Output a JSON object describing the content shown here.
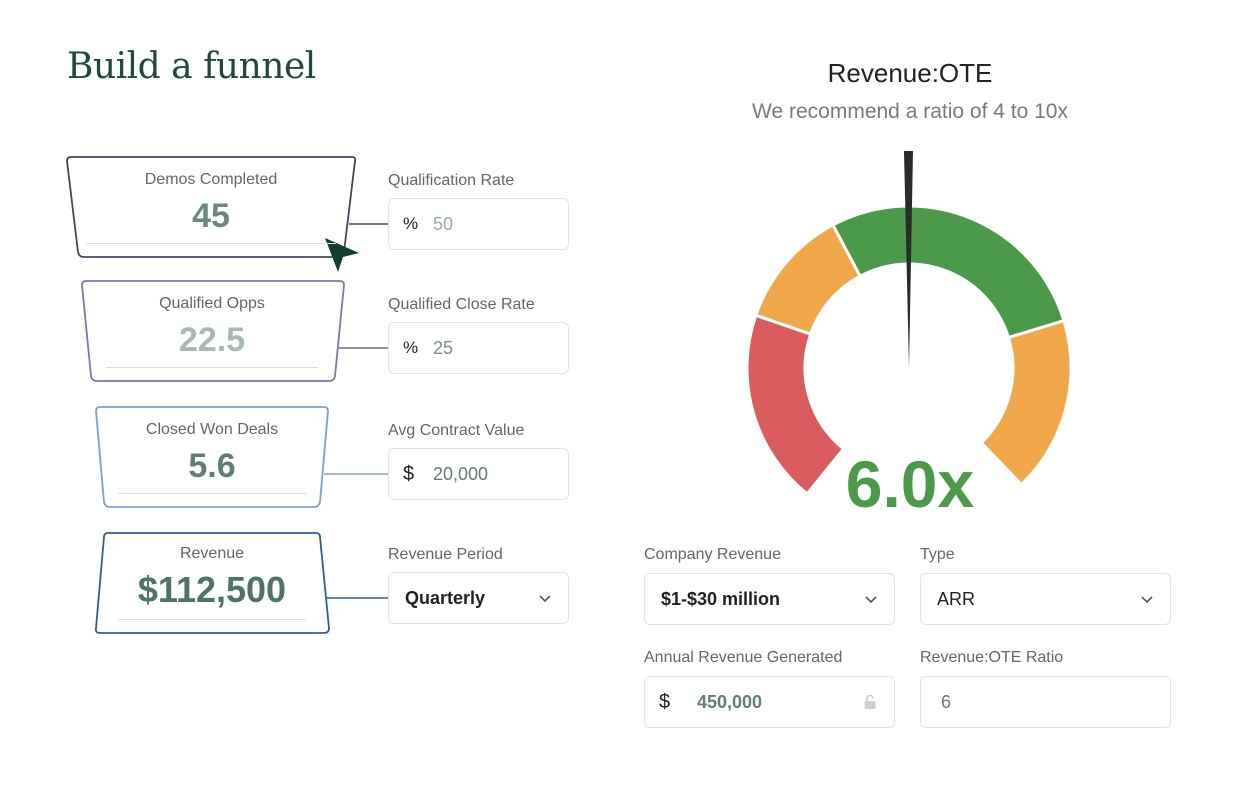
{
  "title": "Build a funnel",
  "funnel": {
    "stages": [
      {
        "label": "Demos Completed",
        "value": "45"
      },
      {
        "label": "Qualified Opps",
        "value": "22.5"
      },
      {
        "label": "Closed Won Deals",
        "value": "5.6"
      },
      {
        "label": "Revenue",
        "value": "$112,500"
      }
    ],
    "inputs": [
      {
        "label": "Qualification Rate",
        "prefix": "%",
        "value": "50"
      },
      {
        "label": "Qualified Close Rate",
        "prefix": "%",
        "value": "25"
      },
      {
        "label": "Avg Contract Value",
        "prefix": "$",
        "value": "20,000"
      },
      {
        "label": "Revenue Period",
        "value": "Quarterly"
      }
    ]
  },
  "gauge": {
    "title": "Revenue:OTE",
    "subtitle": "We recommend a ratio of 4 to 10x",
    "value_label": "6.0x",
    "value": 6.0
  },
  "settings": {
    "company_revenue": {
      "label": "Company Revenue",
      "value": "$1-$30 million"
    },
    "type": {
      "label": "Type",
      "value": "ARR"
    },
    "annual_revenue": {
      "label": "Annual Revenue Generated",
      "prefix": "$",
      "value": "450,000"
    },
    "ratio": {
      "label": "Revenue:OTE Ratio",
      "value": "6"
    }
  },
  "colors": {
    "red": "#dc5b5f",
    "orange": "#f1a84b",
    "green": "#4a9a4a",
    "needle": "#2a2a2a",
    "title": "#1e4a36",
    "cursor": "#12402d"
  },
  "icons": {
    "cursor": "arrow-cursor-icon",
    "chevron": "chevron-down-icon",
    "lock": "unlock-icon"
  }
}
